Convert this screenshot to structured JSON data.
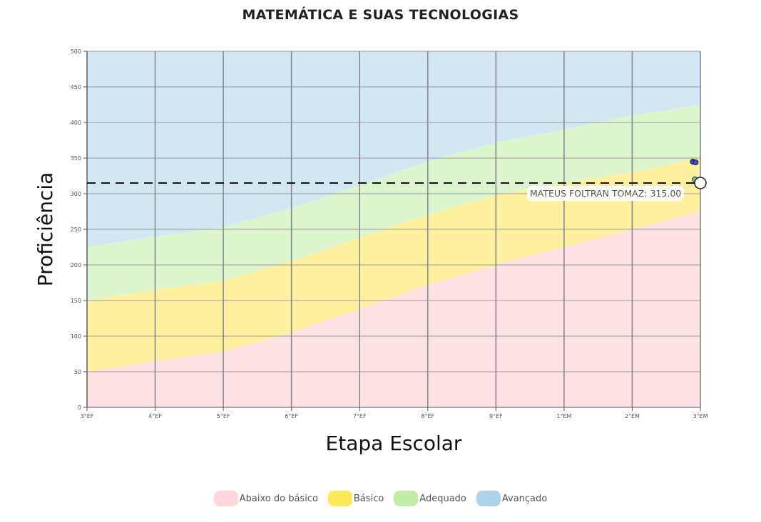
{
  "chart_data": {
    "type": "area",
    "title": "MATEMÁTICA E SUAS TECNOLOGIAS",
    "xlabel": "Etapa Escolar",
    "ylabel": "Proficiência",
    "categories": [
      "3°EF",
      "4°EF",
      "5°EF",
      "6°EF",
      "7°EF",
      "8°EF",
      "9°EF",
      "1°EM",
      "2°EM",
      "3°EM"
    ],
    "ylim": [
      0,
      500
    ],
    "yticks": [
      "0",
      "50",
      "100",
      "150",
      "200",
      "250",
      "300",
      "350",
      "400",
      "450",
      "500"
    ],
    "grid": true,
    "legend_placement": "bottom",
    "series": [
      {
        "name": "Abaixo do básico",
        "color": "#fde2e4",
        "upper": [
          50,
          65,
          78,
          105,
          138,
          172,
          200,
          225,
          250,
          275
        ]
      },
      {
        "name": "Básico",
        "color": "#fff0a0",
        "upper": [
          150,
          165,
          178,
          205,
          238,
          270,
          298,
          315,
          330,
          350
        ]
      },
      {
        "name": "Adequado",
        "color": "#ddf5cf",
        "upper": [
          225,
          240,
          253,
          280,
          312,
          345,
          372,
          390,
          410,
          425
        ]
      },
      {
        "name": "Avançado",
        "color": "#d2e7f4",
        "upper": [
          500,
          500,
          500,
          500,
          500,
          500,
          500,
          500,
          500,
          500
        ]
      }
    ],
    "legend_colors": [
      "#ffd6dc",
      "#fde85a",
      "#c3eda6",
      "#aed4ec"
    ],
    "reference_line": {
      "label": "MATEUS FOLTRAN TOMAZ",
      "value": "315.00",
      "y": 315
    },
    "points": [
      {
        "x": 8.89,
        "y": 345,
        "color": "#3a4ad8"
      },
      {
        "x": 8.93,
        "y": 344,
        "color": "#3a4ad8"
      },
      {
        "x": 8.92,
        "y": 320,
        "color": "#62c4b8"
      },
      {
        "x": 9.0,
        "y": 315,
        "color": "#ffffff"
      }
    ]
  }
}
